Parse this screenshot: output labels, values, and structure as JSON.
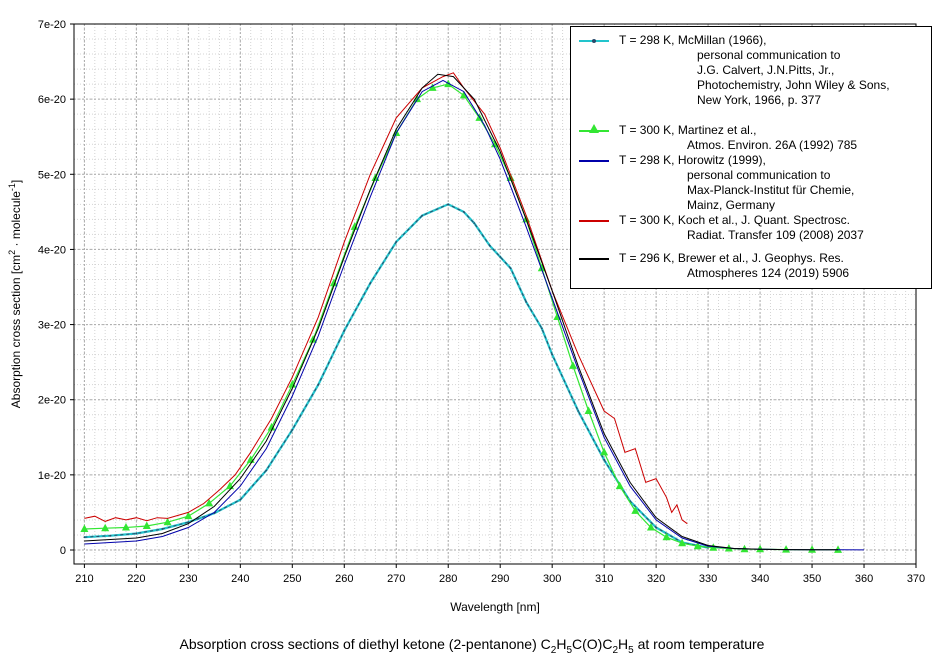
{
  "chart_data": {
    "type": "line",
    "title": "Absorption cross sections of diethyl ketone (2-pentanone) C2H5C(O)C2H5 at room temperature",
    "xlabel": "Wavelength [nm]",
    "ylabel": "Absorption cross section [cm2 · molecule-1]",
    "xlim": [
      208,
      370
    ],
    "ylim": [
      0,
      7e-20
    ],
    "xticks": [
      "210",
      "220",
      "230",
      "240",
      "250",
      "260",
      "270",
      "280",
      "290",
      "300",
      "310",
      "320",
      "330",
      "340",
      "350",
      "360",
      "370"
    ],
    "yticks": [
      "0",
      "1e-20",
      "2e-20",
      "3e-20",
      "4e-20",
      "5e-20",
      "6e-20",
      "7e-20"
    ],
    "grid": true,
    "legend_position": "top-right",
    "series": [
      {
        "name": "T = 298 K, McMillan (1966), personal communication to J.G. Calvert, J.N.Pitts, Jr., Photochemistry, John Wiley & Sons, New York, 1966, p. 377",
        "legend_lines": [
          "T = 298 K, McMillan (1966),",
          "personal communication to",
          "J.G. Calvert, J.N.Pitts, Jr.,",
          "Photochemistry, John Wiley & Sons,",
          "New York, 1966, p. 377"
        ],
        "color": "#22c4cc",
        "marker": "dot",
        "x": [
          210,
          215,
          220,
          225,
          230,
          235,
          240,
          245,
          250,
          255,
          260,
          265,
          270,
          275,
          280,
          283,
          285,
          288,
          290,
          292,
          295,
          298,
          300,
          305,
          310,
          315,
          320,
          325,
          330
        ],
        "y": [
          1.7e-21,
          1.9e-21,
          2.2e-21,
          2.8e-21,
          3.7e-21,
          4.9e-21,
          6.7e-21,
          1.06e-20,
          1.6e-20,
          2.2e-20,
          2.92e-20,
          3.55e-20,
          4.1e-20,
          4.45e-20,
          4.6e-20,
          4.5e-20,
          4.35e-20,
          4.05e-20,
          3.9e-20,
          3.75e-20,
          3.3e-20,
          2.95e-20,
          2.6e-20,
          1.85e-20,
          1.2e-20,
          6.5e-21,
          3e-21,
          1e-21,
          3e-22
        ]
      },
      {
        "name": "T = 300 K, Martinez et al., Atmos. Environ. 26A (1992) 785",
        "legend_lines": [
          "T = 300 K, Martinez et al.,",
          "Atmos. Environ. 26A (1992) 785"
        ],
        "color": "#33e633",
        "marker": "triangle",
        "x": [
          210,
          214,
          218,
          222,
          226,
          230,
          234,
          238,
          242,
          246,
          250,
          254,
          258,
          262,
          266,
          270,
          274,
          277,
          280,
          283,
          286,
          289,
          292,
          295,
          298,
          301,
          304,
          307,
          310,
          313,
          316,
          319,
          322,
          325,
          328,
          331,
          334,
          337,
          340,
          345,
          350,
          355
        ],
        "y": [
          2.8e-21,
          2.9e-21,
          3e-21,
          3.2e-21,
          3.7e-21,
          4.5e-21,
          6.2e-21,
          8.5e-21,
          1.2e-20,
          1.63e-20,
          2.2e-20,
          2.8e-20,
          3.55e-20,
          4.3e-20,
          4.95e-20,
          5.55e-20,
          6e-20,
          6.15e-20,
          6.2e-20,
          6.05e-20,
          5.75e-20,
          5.4e-20,
          4.95e-20,
          4.4e-20,
          3.75e-20,
          3.1e-20,
          2.45e-20,
          1.85e-20,
          1.3e-20,
          8.5e-21,
          5.2e-21,
          3e-21,
          1.7e-21,
          9e-22,
          5e-22,
          3e-22,
          2e-22,
          1e-22,
          1e-22,
          5e-23,
          3e-23,
          2e-23
        ]
      },
      {
        "name": "T = 298 K, Horowitz (1999), personal communication to Max-Planck-Institut für Chemie, Mainz, Germany",
        "legend_lines": [
          "T = 298 K, Horowitz (1999),",
          "personal communication to",
          "Max-Planck-Institut für Chemie,",
          "Mainz, Germany"
        ],
        "color": "#0000aa",
        "marker": "none",
        "x": [
          210,
          215,
          220,
          225,
          230,
          235,
          240,
          245,
          250,
          255,
          260,
          265,
          270,
          275,
          279,
          283,
          287,
          290,
          295,
          300,
          305,
          310,
          315,
          320,
          325,
          330,
          335,
          340,
          345,
          350,
          355,
          360
        ],
        "y": [
          8e-22,
          1e-21,
          1.2e-21,
          1.8e-21,
          3e-21,
          5e-21,
          8.5e-21,
          1.35e-20,
          2.05e-20,
          2.85e-20,
          3.8e-20,
          4.7e-20,
          5.55e-20,
          6.1e-20,
          6.25e-20,
          6.1e-20,
          5.65e-20,
          5.2e-20,
          4.3e-20,
          3.35e-20,
          2.4e-20,
          1.5e-20,
          8.5e-21,
          4e-21,
          1.6e-21,
          5e-22,
          2e-22,
          1e-22,
          5e-23,
          3e-23,
          2e-23,
          1e-23
        ]
      },
      {
        "name": "T = 300 K, Koch et al., J. Quant. Spectrosc. Radiat. Transfer 109 (2008) 2037",
        "legend_lines": [
          "T = 300 K, Koch et al., J. Quant. Spectrosc.",
          "Radiat. Transfer 109 (2008) 2037"
        ],
        "color": "#cc0000",
        "marker": "none",
        "x": [
          210,
          212,
          214,
          216,
          218,
          220,
          222,
          224,
          226,
          228,
          230,
          233,
          236,
          239,
          242,
          246,
          250,
          255,
          260,
          265,
          270,
          275,
          279,
          281,
          283,
          287,
          290,
          295,
          300,
          305,
          310,
          312,
          314,
          316,
          318,
          320,
          322,
          323,
          324,
          325,
          326
        ],
        "y": [
          4.2e-21,
          4.5e-21,
          3.8e-21,
          4.3e-21,
          4e-21,
          4.3e-21,
          3.9e-21,
          4.3e-21,
          4.2e-21,
          4.6e-21,
          5e-21,
          6.2e-21,
          8e-21,
          1e-20,
          1.3e-20,
          1.75e-20,
          2.3e-20,
          3.1e-20,
          4.1e-20,
          5e-20,
          5.75e-20,
          6.15e-20,
          6.3e-20,
          6.35e-20,
          6.15e-20,
          5.8e-20,
          5.35e-20,
          4.45e-20,
          3.45e-20,
          2.6e-20,
          1.85e-20,
          1.75e-20,
          1.3e-20,
          1.35e-20,
          9e-21,
          9.5e-21,
          7e-21,
          5e-21,
          6e-21,
          4e-21,
          3.5e-21
        ]
      },
      {
        "name": "T = 296 K, Brewer et al., J. Geophys. Res. Atmospheres 124 (2019) 5906",
        "legend_lines": [
          "T = 296 K, Brewer et al., J. Geophys. Res.",
          "Atmospheres 124 (2019) 5906"
        ],
        "color": "#000000",
        "marker": "none",
        "x": [
          210,
          215,
          220,
          225,
          230,
          235,
          240,
          245,
          250,
          255,
          260,
          265,
          270,
          275,
          278,
          281,
          285,
          290,
          295,
          300,
          305,
          310,
          315,
          320,
          325,
          330,
          335,
          340,
          345,
          350,
          355
        ],
        "y": [
          1.2e-21,
          1.4e-21,
          1.6e-21,
          2.2e-21,
          3.5e-21,
          5.8e-21,
          9.5e-21,
          1.45e-20,
          2.15e-20,
          2.95e-20,
          3.9e-20,
          4.8e-20,
          5.6e-20,
          6.15e-20,
          6.33e-20,
          6.3e-20,
          6e-20,
          5.3e-20,
          4.4e-20,
          3.45e-20,
          2.45e-20,
          1.55e-20,
          9e-21,
          4.3e-21,
          1.8e-21,
          6e-22,
          2e-22,
          1e-22,
          5e-23,
          3e-23,
          2e-23
        ]
      }
    ]
  }
}
